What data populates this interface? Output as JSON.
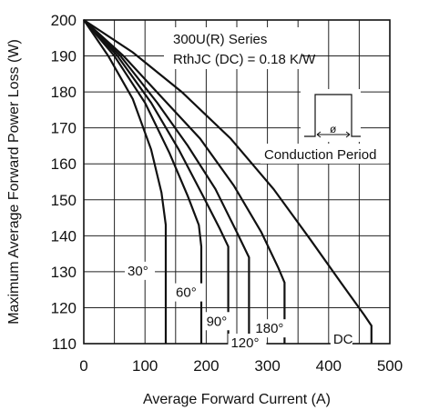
{
  "chart_data": {
    "type": "line",
    "xlabel": "Average Forward Current (A)",
    "ylabel": "Maximum Average Forward Power Loss (W)",
    "xlim": [
      0,
      500
    ],
    "ylim": [
      110,
      200
    ],
    "xticks": [
      0,
      100,
      200,
      300,
      400,
      500
    ],
    "yticks": [
      110,
      120,
      130,
      140,
      150,
      160,
      170,
      180,
      190,
      200
    ],
    "grid": true,
    "annotations": {
      "series_line1": "300U(R) Series",
      "series_line2": "RthJC (DC) = 0.18 K/W",
      "period_symbol": "ø",
      "period_caption": "Conduction Period"
    },
    "series": [
      {
        "name": "30°",
        "points": [
          [
            0,
            200
          ],
          [
            40,
            190
          ],
          [
            80,
            178
          ],
          [
            110,
            164
          ],
          [
            127,
            152
          ],
          [
            134,
            143
          ],
          [
            134,
            110
          ]
        ]
      },
      {
        "name": "60°",
        "points": [
          [
            0,
            200
          ],
          [
            50,
            190
          ],
          [
            100,
            177
          ],
          [
            140,
            163
          ],
          [
            170,
            151
          ],
          [
            188,
            143
          ],
          [
            192,
            137
          ],
          [
            192,
            110
          ]
        ]
      },
      {
        "name": "90°",
        "points": [
          [
            0,
            200
          ],
          [
            55,
            190
          ],
          [
            110,
            177
          ],
          [
            155,
            164
          ],
          [
            195,
            151
          ],
          [
            222,
            142
          ],
          [
            236,
            137
          ],
          [
            236,
            110
          ]
        ]
      },
      {
        "name": "120°",
        "points": [
          [
            0,
            200
          ],
          [
            60,
            190
          ],
          [
            120,
            177
          ],
          [
            170,
            165
          ],
          [
            215,
            153
          ],
          [
            250,
            141
          ],
          [
            270,
            134
          ],
          [
            270,
            110
          ]
        ]
      },
      {
        "name": "180°",
        "points": [
          [
            0,
            200
          ],
          [
            65,
            190
          ],
          [
            130,
            178
          ],
          [
            190,
            167
          ],
          [
            245,
            154
          ],
          [
            290,
            141
          ],
          [
            318,
            131
          ],
          [
            328,
            127
          ],
          [
            328,
            110
          ]
        ]
      },
      {
        "name": "DC",
        "points": [
          [
            0,
            200
          ],
          [
            80,
            191
          ],
          [
            160,
            180
          ],
          [
            240,
            167
          ],
          [
            310,
            153
          ],
          [
            370,
            139
          ],
          [
            420,
            127
          ],
          [
            458,
            118
          ],
          [
            470,
            115
          ],
          [
            470,
            110
          ]
        ]
      }
    ]
  }
}
